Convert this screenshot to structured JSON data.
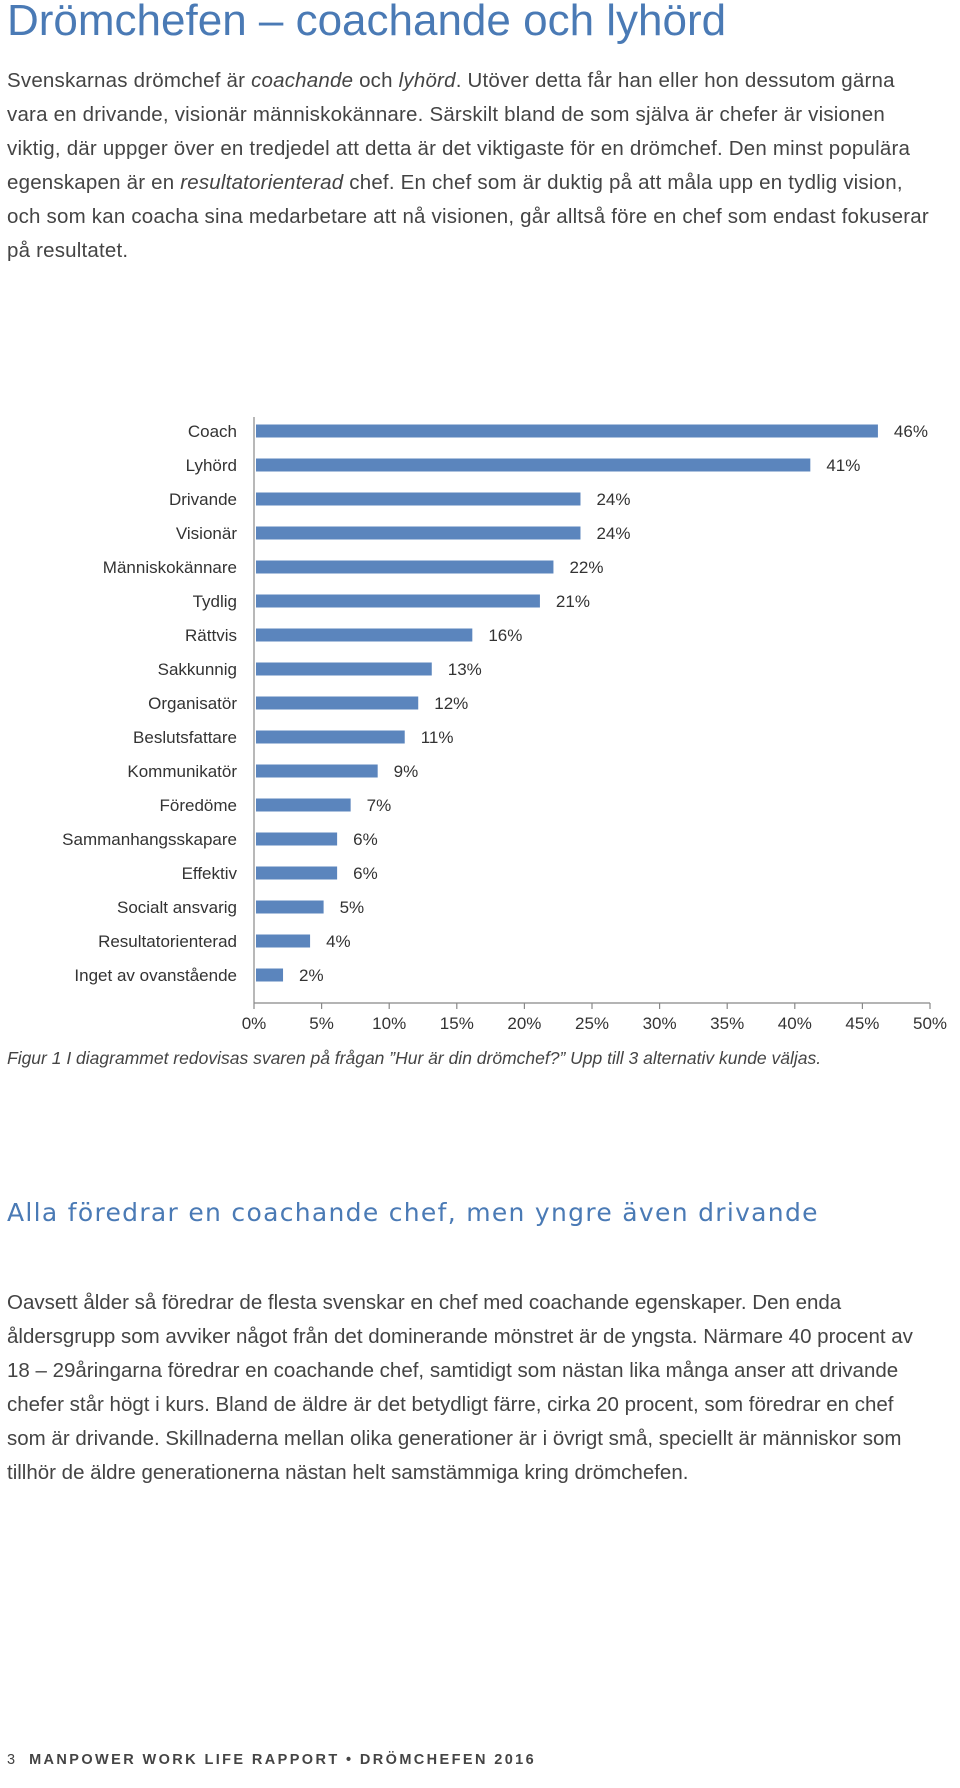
{
  "page": {
    "title": "Drömchefen – coachande och lyhörd",
    "intro": [
      {
        "t": "Svenskarnas drömchef är ",
        "i": false
      },
      {
        "t": "coachande",
        "i": true
      },
      {
        "t": " och ",
        "i": false
      },
      {
        "t": "lyhörd",
        "i": true
      },
      {
        "t": ". Utöver detta får han eller hon dessutom gärna vara en drivande, visionär människokännare. Särskilt bland de som själva är chefer är visionen viktig, där uppger över en tredjedel att detta är det viktigaste för en drömchef. Den minst populära egenskapen är en ",
        "i": false
      },
      {
        "t": "resultatorienterad",
        "i": true
      },
      {
        "t": " chef. En chef som är duktig på att måla upp en tydlig vision, och som kan coacha sina medarbetare att nå visionen, går alltså före en chef som endast fokuserar på resultatet.",
        "i": false
      }
    ],
    "caption": "Figur 1 I diagrammet redovisas svaren på frågan ”Hur är din drömchef?” Upp till 3 alternativ kunde väljas.",
    "subheading": "Alla föredrar en coachande chef, men yngre även drivande",
    "body2": "Oavsett ålder så föredrar de flesta svenskar en chef med coachande egenskaper. Den enda åldersgrupp som avviker något från det dominerande mönstret är de yngsta. Närmare 40 procent av 18 – 29åringarna föredrar en coachande chef, samtidigt som nästan lika många anser att drivande chefer står högt i kurs. Bland de äldre är det betydligt färre, cirka 20 procent, som föredrar en chef som är drivande. Skillnaderna mellan olika generationer är i övrigt små, speciellt är människor som tillhör de äldre generationerna nästan helt samstämmiga kring drömchefen.",
    "footer": {
      "page_number": "3",
      "text": "MANPOWER WORK LIFE RAPPORT • DRÖMCHEFEN 2016"
    }
  },
  "colors": {
    "heading": "#4a7ab5",
    "bar": "#5b85bd",
    "text": "#444444"
  },
  "chart_data": {
    "type": "bar",
    "orientation": "horizontal",
    "categories": [
      "Coach",
      "Lyhörd",
      "Drivande",
      "Visionär",
      "Människokännare",
      "Tydlig",
      "Rättvis",
      "Sakkunnig",
      "Organisatör",
      "Beslutsfattare",
      "Kommunikatör",
      "Föredöme",
      "Sammanhangsskapare",
      "Effektiv",
      "Socialt ansvarig",
      "Resultatorienterad",
      "Inget av ovanstående"
    ],
    "values": [
      46,
      41,
      24,
      24,
      22,
      21,
      16,
      13,
      12,
      11,
      9,
      7,
      6,
      6,
      5,
      4,
      2
    ],
    "value_labels": [
      "46%",
      "41%",
      "24%",
      "24%",
      "22%",
      "21%",
      "16%",
      "13%",
      "12%",
      "11%",
      "9%",
      "7%",
      "6%",
      "6%",
      "5%",
      "4%",
      "2%"
    ],
    "xlim": [
      0,
      50
    ],
    "xticks": [
      "0%",
      "5%",
      "10%",
      "15%",
      "20%",
      "25%",
      "30%",
      "35%",
      "40%",
      "45%",
      "50%"
    ],
    "grid": false,
    "legend": "none"
  }
}
